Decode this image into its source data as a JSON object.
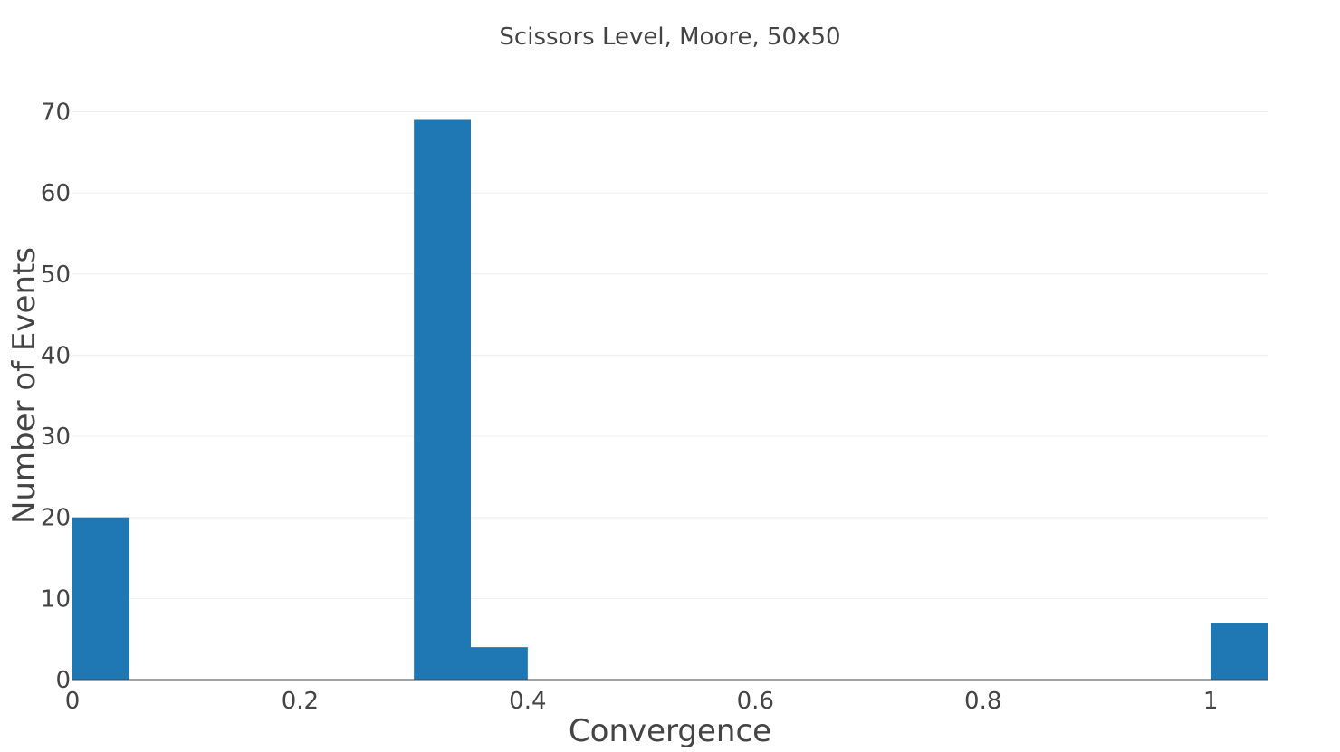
{
  "chart_data": {
    "type": "bar",
    "title": "Scissors Level, Moore, 50x50",
    "xlabel": "Convergence",
    "ylabel": "Number of Events",
    "xlim": [
      0,
      1.05
    ],
    "ylim": [
      0,
      72
    ],
    "x_ticks": [
      "0",
      "0.2",
      "0.4",
      "0.6",
      "0.8",
      "1"
    ],
    "y_ticks": [
      "0",
      "10",
      "20",
      "30",
      "40",
      "50",
      "60",
      "70"
    ],
    "grid": true,
    "bar_color": "#1f77b4",
    "bins": [
      {
        "start": 0.0,
        "end": 0.05,
        "value": 20
      },
      {
        "start": 0.3,
        "end": 0.35,
        "value": 69
      },
      {
        "start": 0.35,
        "end": 0.4,
        "value": 4
      },
      {
        "start": 1.0,
        "end": 1.05,
        "value": 7
      }
    ]
  }
}
